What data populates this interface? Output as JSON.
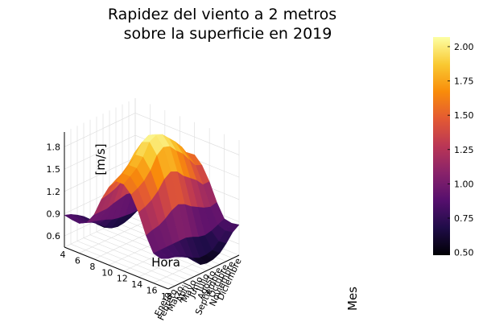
{
  "chart_data": {
    "type": "surface",
    "title_lines": [
      "Rapidez del viento a 2 metros",
      "sobre la superficie en 2019"
    ],
    "xlabel": "Hora",
    "ylabel": "Mes",
    "zlabel": "[m/s]",
    "x_ticks": [
      "4",
      "6",
      "8",
      "10",
      "12",
      "14",
      "16",
      "18"
    ],
    "x_values": [
      4,
      5,
      6,
      7,
      8,
      9,
      10,
      11,
      12,
      13,
      14,
      15,
      16,
      17,
      18
    ],
    "y_ticks": [
      "Enero",
      "Febrero",
      "Marzo",
      "Abril",
      "Mayo",
      "Junio",
      "Julio",
      "Agosto",
      "Septiembre",
      "Octubre",
      "Noviembre",
      "Diciembre"
    ],
    "z_ticks": [
      "0.6",
      "0.9",
      "1.2",
      "1.5",
      "1.8"
    ],
    "z_tick_values": [
      0.6,
      0.9,
      1.2,
      1.5,
      1.8
    ],
    "zlim": [
      0.45,
      2.0
    ],
    "colorbar_ticks": [
      "0.50",
      "0.75",
      "1.00",
      "1.25",
      "1.50",
      "1.75",
      "2.00"
    ],
    "colorbar_tick_values": [
      0.5,
      0.75,
      1.0,
      1.25,
      1.5,
      1.75,
      2.0
    ],
    "clim": [
      0.48,
      2.07
    ],
    "colormap": "inferno",
    "grid": true,
    "z": [
      [
        0.88,
        0.86,
        0.85,
        0.9,
        1.05,
        1.3,
        1.5,
        1.62,
        1.62,
        1.52,
        1.32,
        1.05,
        0.85,
        0.82,
        0.86
      ],
      [
        0.85,
        0.83,
        0.82,
        0.88,
        1.05,
        1.32,
        1.55,
        1.68,
        1.68,
        1.56,
        1.35,
        1.08,
        0.85,
        0.8,
        0.84
      ],
      [
        0.8,
        0.78,
        0.78,
        0.85,
        1.05,
        1.35,
        1.6,
        1.75,
        1.75,
        1.62,
        1.4,
        1.1,
        0.85,
        0.78,
        0.8
      ],
      [
        0.74,
        0.72,
        0.72,
        0.82,
        1.08,
        1.4,
        1.68,
        1.85,
        1.86,
        1.72,
        1.48,
        1.15,
        0.85,
        0.74,
        0.75
      ],
      [
        0.66,
        0.63,
        0.64,
        0.78,
        1.1,
        1.48,
        1.8,
        1.98,
        2.02,
        1.88,
        1.6,
        1.22,
        0.85,
        0.68,
        0.66
      ],
      [
        0.58,
        0.55,
        0.58,
        0.76,
        1.12,
        1.52,
        1.85,
        2.03,
        2.07,
        1.95,
        1.66,
        1.26,
        0.85,
        0.62,
        0.57
      ],
      [
        0.56,
        0.53,
        0.56,
        0.75,
        1.1,
        1.5,
        1.82,
        2.0,
        2.04,
        1.92,
        1.62,
        1.22,
        0.82,
        0.58,
        0.55
      ],
      [
        0.58,
        0.55,
        0.57,
        0.74,
        1.06,
        1.45,
        1.76,
        1.92,
        1.95,
        1.82,
        1.52,
        1.15,
        0.78,
        0.58,
        0.56
      ],
      [
        0.62,
        0.6,
        0.6,
        0.74,
        1.04,
        1.4,
        1.7,
        1.85,
        1.86,
        1.74,
        1.45,
        1.1,
        0.76,
        0.6,
        0.6
      ],
      [
        0.7,
        0.68,
        0.67,
        0.76,
        1.0,
        1.32,
        1.6,
        1.75,
        1.75,
        1.62,
        1.38,
        1.05,
        0.78,
        0.68,
        0.69
      ],
      [
        0.82,
        0.8,
        0.78,
        0.82,
        1.0,
        1.26,
        1.48,
        1.6,
        1.6,
        1.5,
        1.28,
        1.02,
        0.82,
        0.78,
        0.8
      ],
      [
        0.88,
        0.86,
        0.85,
        0.88,
        1.02,
        1.25,
        1.45,
        1.55,
        1.56,
        1.46,
        1.28,
        1.04,
        0.86,
        0.84,
        0.86
      ]
    ]
  }
}
